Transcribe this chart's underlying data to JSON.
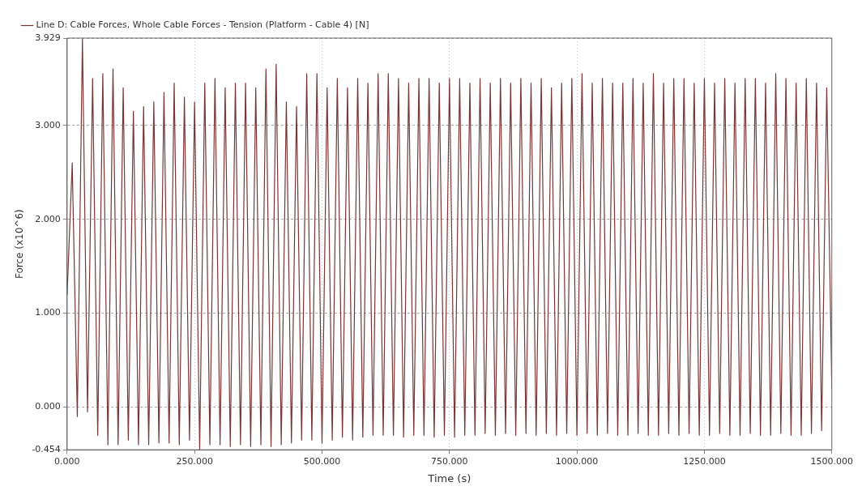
{
  "chart_data": {
    "type": "line",
    "xlabel": "Time (s)",
    "ylabel": "Force (x10^6)",
    "x": [
      0,
      10,
      20,
      30,
      40,
      50,
      60,
      70,
      80,
      90,
      100,
      110,
      120,
      130,
      140,
      150,
      160,
      170,
      180,
      190,
      200,
      210,
      220,
      230,
      240,
      250,
      260,
      270,
      280,
      290,
      300,
      310,
      320,
      330,
      340,
      350,
      360,
      370,
      380,
      390,
      400,
      410,
      420,
      430,
      440,
      450,
      460,
      470,
      480,
      490,
      500,
      510,
      520,
      530,
      540,
      550,
      560,
      570,
      580,
      590,
      600,
      610,
      620,
      630,
      640,
      650,
      660,
      670,
      680,
      690,
      700,
      710,
      720,
      730,
      740,
      750,
      760,
      770,
      780,
      790,
      800,
      810,
      820,
      830,
      840,
      850,
      860,
      870,
      880,
      890,
      900,
      910,
      920,
      930,
      940,
      950,
      960,
      970,
      980,
      990,
      1000,
      1010,
      1020,
      1030,
      1040,
      1050,
      1060,
      1070,
      1080,
      1090,
      1100,
      1110,
      1120,
      1130,
      1140,
      1150,
      1160,
      1170,
      1180,
      1190,
      1200,
      1210,
      1220,
      1230,
      1240,
      1250,
      1260,
      1270,
      1280,
      1290,
      1300,
      1310,
      1320,
      1330,
      1340,
      1350,
      1360,
      1370,
      1380,
      1390,
      1400,
      1410,
      1420,
      1430,
      1440,
      1450,
      1460,
      1470,
      1480,
      1490,
      1500
    ],
    "series": [
      {
        "name": "Line D: Cable Forces, Whole Cable Forces - Tension (Platform - Cable 4) [N]",
        "color": "#7a3535",
        "values": [
          1.2,
          2.6,
          -0.1,
          3.92,
          -0.05,
          3.5,
          -0.3,
          3.55,
          -0.4,
          3.6,
          -0.4,
          3.4,
          -0.35,
          3.15,
          -0.4,
          3.2,
          -0.4,
          3.25,
          -0.38,
          3.35,
          -0.38,
          3.45,
          -0.4,
          3.3,
          -0.35,
          3.25,
          -0.45,
          3.45,
          -0.4,
          3.5,
          -0.4,
          3.4,
          -0.42,
          3.45,
          -0.4,
          3.45,
          -0.42,
          3.4,
          -0.4,
          3.6,
          -0.42,
          3.65,
          -0.4,
          3.25,
          -0.38,
          3.2,
          -0.35,
          3.55,
          -0.35,
          3.55,
          -0.38,
          3.4,
          -0.35,
          3.5,
          -0.32,
          3.4,
          -0.35,
          3.5,
          -0.32,
          3.45,
          -0.3,
          3.55,
          -0.3,
          3.55,
          -0.3,
          3.5,
          -0.32,
          3.45,
          -0.3,
          3.5,
          -0.3,
          3.5,
          -0.32,
          3.45,
          -0.3,
          3.5,
          -0.32,
          3.5,
          -0.3,
          3.45,
          -0.3,
          3.5,
          -0.28,
          3.45,
          -0.3,
          3.5,
          -0.28,
          3.45,
          -0.3,
          3.5,
          -0.28,
          3.45,
          -0.3,
          3.5,
          -0.28,
          3.4,
          -0.3,
          3.45,
          -0.28,
          3.5,
          -0.3,
          3.55,
          -0.28,
          3.45,
          -0.3,
          3.5,
          -0.28,
          3.45,
          -0.3,
          3.45,
          -0.3,
          3.5,
          -0.28,
          3.45,
          -0.3,
          3.55,
          -0.3,
          3.45,
          -0.28,
          3.5,
          -0.3,
          3.5,
          -0.28,
          3.45,
          -0.3,
          3.5,
          -0.3,
          3.45,
          -0.28,
          3.5,
          -0.3,
          3.45,
          -0.3,
          3.5,
          -0.28,
          3.5,
          -0.3,
          3.45,
          -0.3,
          3.55,
          -0.28,
          3.5,
          -0.3,
          3.45,
          -0.3,
          3.5,
          -0.28,
          3.45,
          -0.25,
          3.4,
          0.2
        ]
      }
    ],
    "xlim": [
      0,
      1500
    ],
    "xticks": [
      {
        "value": 0,
        "label": "0.000"
      },
      {
        "value": 250,
        "label": "250.000"
      },
      {
        "value": 500,
        "label": "500.000"
      },
      {
        "value": 750,
        "label": "750.000"
      },
      {
        "value": 1000,
        "label": "1000.000"
      },
      {
        "value": 1250,
        "label": "1250.000"
      },
      {
        "value": 1500,
        "label": "1500.000"
      }
    ],
    "ylim": [
      -0.454,
      3.929
    ],
    "yticks": [
      -0.454,
      {
        "value": 0,
        "label": "0.000"
      },
      {
        "value": 1,
        "label": "1.000"
      },
      {
        "value": 2,
        "label": "2.000"
      },
      {
        "value": 3,
        "label": "3.000"
      },
      3.929
    ],
    "grid": true,
    "legend": "top left",
    "marker": "none",
    "line_style": "solid"
  }
}
